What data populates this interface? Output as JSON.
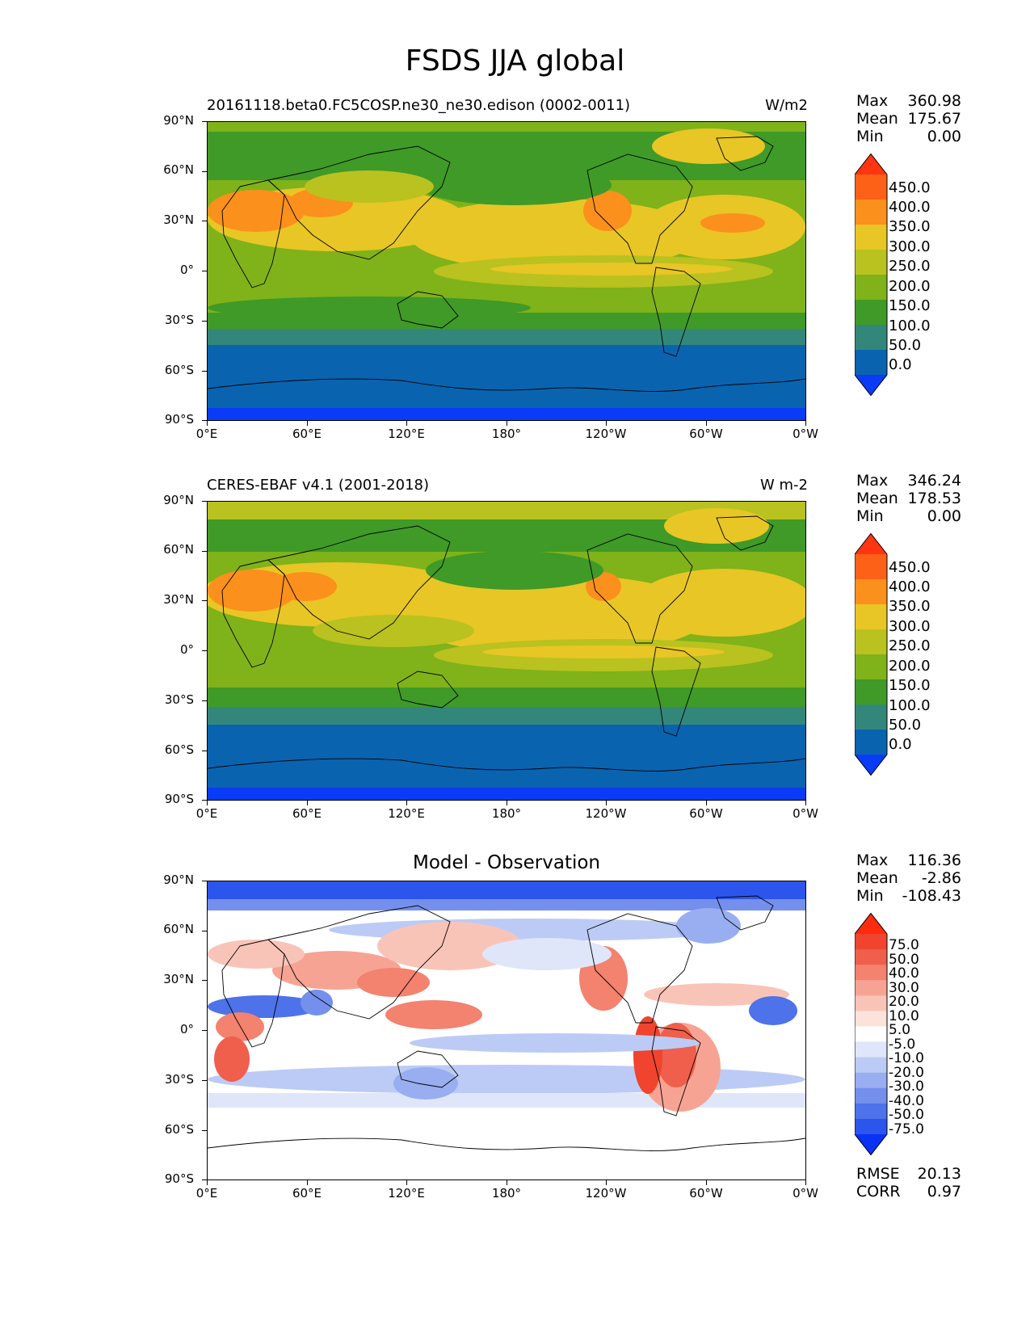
{
  "figure_title": "FSDS JJA global",
  "lat_ticks": [
    "90°N",
    "60°N",
    "30°N",
    "0°",
    "30°S",
    "60°S",
    "90°S"
  ],
  "lon_ticks": [
    "0°E",
    "60°E",
    "120°E",
    "180°",
    "120°W",
    "60°W",
    "0°W"
  ],
  "panels": [
    {
      "title_left": "20161118.beta0.FC5COSP.ne30_ne30.edison (0002-0011)",
      "title_right": "W/m2",
      "stats": {
        "max_label": "Max",
        "max": "360.98",
        "mean_label": "Mean",
        "mean": "175.67",
        "min_label": "Min",
        "min": "0.00"
      },
      "colorbar_labels": [
        "450.0",
        "400.0",
        "350.0",
        "300.0",
        "250.0",
        "200.0",
        "150.0",
        "100.0",
        "50.0",
        "0.0"
      ],
      "colorbar_colors": [
        "#ff3511",
        "#fd6117",
        "#fb901c",
        "#e8c625",
        "#b9c21f",
        "#80b21a",
        "#3f9a27",
        "#33877a",
        "#0a63af",
        "#0a3bf7"
      ]
    },
    {
      "title_left": "CERES-EBAF v4.1 (2001-2018)",
      "title_right": "W m-2",
      "stats": {
        "max_label": "Max",
        "max": "346.24",
        "mean_label": "Mean",
        "mean": "178.53",
        "min_label": "Min",
        "min": "0.00"
      },
      "colorbar_labels": [
        "450.0",
        "400.0",
        "350.0",
        "300.0",
        "250.0",
        "200.0",
        "150.0",
        "100.0",
        "50.0",
        "0.0"
      ],
      "colorbar_colors": [
        "#ff3511",
        "#fd6117",
        "#fb901c",
        "#e8c625",
        "#b9c21f",
        "#80b21a",
        "#3f9a27",
        "#33877a",
        "#0a63af",
        "#0a3bf7"
      ]
    },
    {
      "title_center": "Model - Observation",
      "stats": {
        "max_label": "Max",
        "max": "116.36",
        "mean_label": "Mean",
        "mean": "-2.86",
        "min_label": "Min",
        "min": "-108.43"
      },
      "colorbar_labels": [
        "75.0",
        "50.0",
        "40.0",
        "30.0",
        "20.0",
        "10.0",
        "5.0",
        "-5.0",
        "-10.0",
        "-20.0",
        "-30.0",
        "-40.0",
        "-50.0",
        "-75.0"
      ],
      "colorbar_colors": [
        "#ff2b0e",
        "#f0442e",
        "#ef5f4b",
        "#f3826f",
        "#f7a394",
        "#f9c4b8",
        "#fbe3dc",
        "#ffffff",
        "#dfe6fa",
        "#bccbf5",
        "#99aef0",
        "#7490ec",
        "#4d72ea",
        "#2c55ee",
        "#0a32f5"
      ],
      "rmse_label": "RMSE",
      "rmse": "20.13",
      "corr_label": "CORR",
      "corr": "0.97"
    }
  ]
}
